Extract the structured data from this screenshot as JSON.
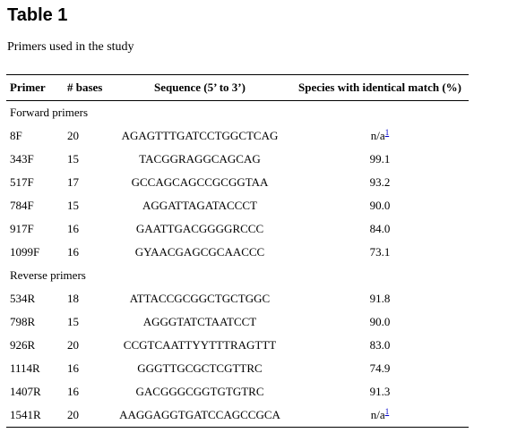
{
  "table_title": "Table 1",
  "caption": "Primers used in the study",
  "headers": [
    "Primer",
    "# bases",
    "Sequence (5’ to 3’)",
    "Species with identical match (%)"
  ],
  "forward_label": "Forward primers",
  "forward": [
    {
      "primer": "8F",
      "bases": "20",
      "sequence": "AGAGTTTGATCCTGGCTCAG",
      "match": "n/a",
      "note": "1"
    },
    {
      "primer": "343F",
      "bases": "15",
      "sequence": "TACGGRAGGCAGCAG",
      "match": "99.1"
    },
    {
      "primer": "517F",
      "bases": "17",
      "sequence": "GCCAGCAGCCGCGGTAA",
      "match": "93.2"
    },
    {
      "primer": "784F",
      "bases": "15",
      "sequence": "AGGATTAGATACCCT",
      "match": "90.0"
    },
    {
      "primer": "917F",
      "bases": "16",
      "sequence": "GAATTGACGGGGRCCC",
      "match": "84.0"
    },
    {
      "primer": "1099F",
      "bases": "16",
      "sequence": "GYAACGAGCGCAACCC",
      "match": "73.1"
    }
  ],
  "reverse_label": "Reverse primers",
  "reverse": [
    {
      "primer": "534R",
      "bases": "18",
      "sequence": "ATTACCGCGGCTGCTGGC",
      "match": "91.8"
    },
    {
      "primer": "798R",
      "bases": "15",
      "sequence": "AGGGTATCTAATCCT",
      "match": "90.0"
    },
    {
      "primer": "926R",
      "bases": "20",
      "sequence": "CCGTCAATTYYTTTRAGTTT",
      "match": "83.0"
    },
    {
      "primer": "1114R",
      "bases": "16",
      "sequence": "GGGTTGCGCTCGTTRC",
      "match": "74.9"
    },
    {
      "primer": "1407R",
      "bases": "16",
      "sequence": "GACGGGCGGTGTGTRC",
      "match": "91.3"
    },
    {
      "primer": "1541R",
      "bases": "20",
      "sequence": "AAGGAGGTGATCCAGCCGCA",
      "match": "n/a",
      "note": "1"
    }
  ]
}
